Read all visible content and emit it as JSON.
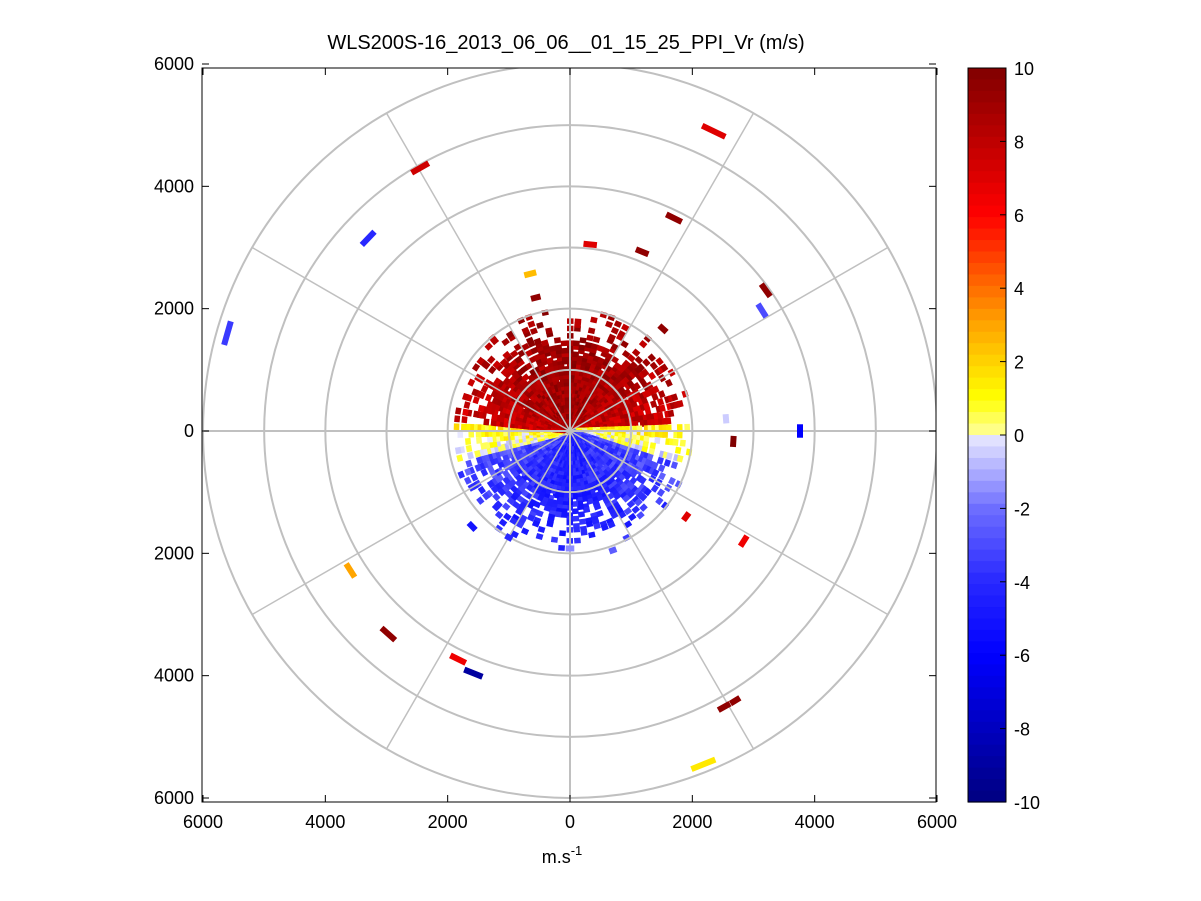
{
  "chart_data": {
    "type": "scatter",
    "subtype": "polar-ppi-colormap",
    "title": "WLS200S-16_2013_06_06__01_15_25_PPI_Vr (m/s)",
    "xlabel_base": "m.s",
    "xlabel_exp": "-1",
    "ylabel": "",
    "xlim": [
      -6000,
      6000
    ],
    "ylim": [
      -6000,
      6000
    ],
    "x_ticks": [
      {
        "value": -6000,
        "label": "6000"
      },
      {
        "value": -4000,
        "label": "4000"
      },
      {
        "value": -2000,
        "label": "2000"
      },
      {
        "value": 0,
        "label": "0"
      },
      {
        "value": 2000,
        "label": "2000"
      },
      {
        "value": 4000,
        "label": "4000"
      },
      {
        "value": 6000,
        "label": "6000"
      }
    ],
    "y_ticks": [
      {
        "value": 6000,
        "label": "6000"
      },
      {
        "value": 4000,
        "label": "4000"
      },
      {
        "value": 2000,
        "label": "2000"
      },
      {
        "value": 0,
        "label": "0"
      },
      {
        "value": -2000,
        "label": "2000"
      },
      {
        "value": -4000,
        "label": "4000"
      },
      {
        "value": -6000,
        "label": "6000"
      }
    ],
    "polar_grid": {
      "ring_radii": [
        1000,
        2000,
        3000,
        4000,
        5000,
        6000
      ],
      "spoke_angles_deg": [
        0,
        30,
        60,
        90,
        120,
        150,
        180,
        210,
        240,
        270,
        300,
        330
      ],
      "grid": true
    },
    "colorbar": {
      "min": -10,
      "max": 10,
      "tick_values": [
        10,
        8,
        6,
        4,
        2,
        0,
        -2,
        -4,
        -6,
        -8,
        -10
      ],
      "tick_labels": [
        "10",
        "8",
        "6",
        "4",
        "2",
        "0",
        "-2",
        "-4",
        "-6",
        "-8",
        "-10"
      ],
      "colormap": "blue-white-yellow-red"
    },
    "near_field": {
      "range_max": 2000,
      "description_values": {
        "north_sector_vr": 9,
        "east_west_transition_vr": 1,
        "south_sector_vr": -3
      }
    },
    "isolated_points": [
      {
        "x": 2350,
        "y": 4900,
        "vr": 7,
        "len": 420
      },
      {
        "x": -2450,
        "y": 4300,
        "vr": 7.5,
        "len": 320
      },
      {
        "x": -3300,
        "y": 3150,
        "vr": -4,
        "len": 300
      },
      {
        "x": 1700,
        "y": 3480,
        "vr": 9.5,
        "len": 280
      },
      {
        "x": 330,
        "y": 3050,
        "vr": 7,
        "len": 220
      },
      {
        "x": 1180,
        "y": 2930,
        "vr": 9.5,
        "len": 220
      },
      {
        "x": -650,
        "y": 2570,
        "vr": 2.5,
        "len": 200
      },
      {
        "x": -560,
        "y": 2180,
        "vr": 9.5,
        "len": 160
      },
      {
        "x": 3200,
        "y": 2300,
        "vr": 9.5,
        "len": 250
      },
      {
        "x": 3140,
        "y": 1970,
        "vr": -3,
        "len": 250
      },
      {
        "x": 1520,
        "y": 1670,
        "vr": 9.5,
        "len": 160
      },
      {
        "x": -5600,
        "y": 1600,
        "vr": -3.5,
        "len": 400
      },
      {
        "x": 2550,
        "y": 200,
        "vr": -0.5,
        "len": 150
      },
      {
        "x": 3760,
        "y": 0,
        "vr": -6,
        "len": 220
      },
      {
        "x": 2670,
        "y": -170,
        "vr": 10,
        "len": 180
      },
      {
        "x": 1900,
        "y": -1400,
        "vr": 7,
        "len": 150
      },
      {
        "x": 2840,
        "y": -1800,
        "vr": 6.5,
        "len": 200
      },
      {
        "x": -1600,
        "y": -1560,
        "vr": -5,
        "len": 160
      },
      {
        "x": -3590,
        "y": -2280,
        "vr": 3,
        "len": 260
      },
      {
        "x": -2970,
        "y": -3320,
        "vr": 9.5,
        "len": 300
      },
      {
        "x": -1830,
        "y": -3730,
        "vr": 6.5,
        "len": 280
      },
      {
        "x": -1580,
        "y": -3960,
        "vr": -9,
        "len": 320
      },
      {
        "x": 2520,
        "y": -4510,
        "vr": 9.5,
        "len": 220
      },
      {
        "x": 2700,
        "y": -4410,
        "vr": 9.5,
        "len": 180
      },
      {
        "x": 2180,
        "y": -5450,
        "vr": 1.5,
        "len": 420
      },
      {
        "x": 700,
        "y": -1950,
        "vr": -2.5,
        "len": 120
      },
      {
        "x": -1000,
        "y": -1740,
        "vr": -4,
        "len": 120
      },
      {
        "x": 0,
        "y": -1920,
        "vr": -1.5,
        "len": 140
      }
    ]
  }
}
